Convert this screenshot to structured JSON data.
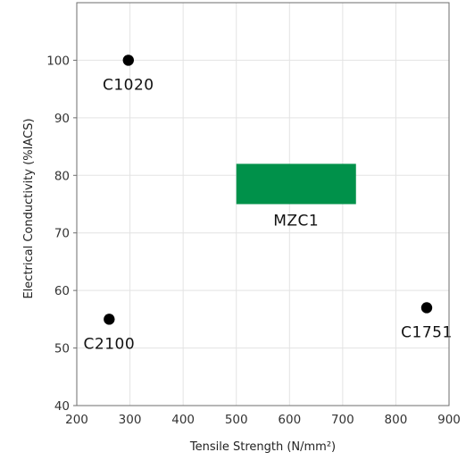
{
  "chart_data": {
    "type": "scatter",
    "xlabel": "Tensile Strength  (N/mm²)",
    "ylabel": "Electrical Conductivity  (%IACS)",
    "xlim": [
      200,
      900
    ],
    "ylim": [
      40,
      110
    ],
    "x_ticks": [
      200,
      300,
      400,
      500,
      600,
      700,
      800,
      900
    ],
    "y_ticks": [
      40,
      50,
      60,
      70,
      80,
      90,
      100
    ],
    "grid": true,
    "points": [
      {
        "label": "C1020",
        "x": 297,
        "y": 100
      },
      {
        "label": "C2100",
        "x": 261,
        "y": 55
      },
      {
        "label": "C1751",
        "x": 858,
        "y": 57
      }
    ],
    "regions": [
      {
        "label": "MZC1",
        "x": [
          500,
          725
        ],
        "y": [
          75,
          82
        ]
      }
    ],
    "colors": {
      "points": "#000000",
      "region": "#00914a",
      "grid": "#e3e3e3",
      "axis": "#6e6e6e"
    }
  }
}
